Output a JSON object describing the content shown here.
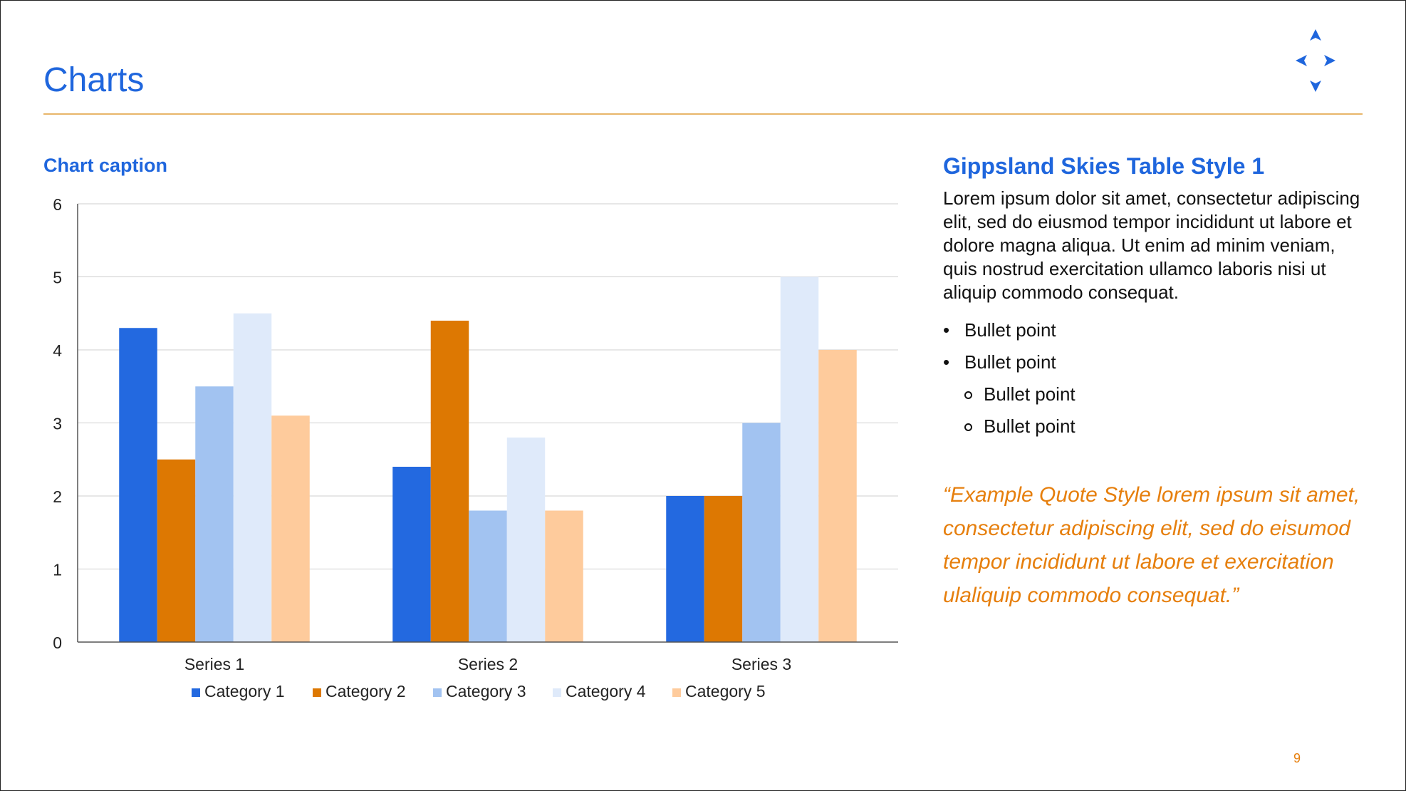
{
  "slide": {
    "title": "Charts",
    "caption": "Chart caption",
    "page_number": "9",
    "logo_icon": "four-arrow-star-icon",
    "accent_color": "#1f66dd",
    "rule_color": "#e8b66a"
  },
  "right_column": {
    "heading": "Gippsland Skies Table Style 1",
    "paragraph": "Lorem ipsum dolor sit amet, consectetur adipiscing elit, sed do eiusmod tempor incididunt ut labore et dolore magna aliqua. Ut enim ad minim veniam, quis nostrud exercitation ullamco laboris nisi ut aliquip commodo consequat.",
    "bullets": [
      {
        "level": 1,
        "text": "Bullet point"
      },
      {
        "level": 1,
        "text": "Bullet point"
      },
      {
        "level": 2,
        "text": "Bullet point"
      },
      {
        "level": 2,
        "text": "Bullet point"
      }
    ],
    "quote": "“Example Quote Style lorem ipsum sit amet, consectetur adipiscing elit, sed do eisumod tempor incididunt ut labore et exercitation ulaliquip commodo consequat.”",
    "quote_color": "#e67f0d"
  },
  "chart_data": {
    "type": "bar",
    "title": "Chart caption",
    "xlabel": "",
    "ylabel": "",
    "ylim": [
      0,
      6
    ],
    "yticks": [
      0,
      1,
      2,
      3,
      4,
      5,
      6
    ],
    "categories": [
      "Series 1",
      "Series 2",
      "Series 3"
    ],
    "grid": true,
    "legend_position": "bottom",
    "series": [
      {
        "name": "Category 1",
        "color": "#2369e0",
        "values": [
          4.3,
          2.4,
          2.0
        ]
      },
      {
        "name": "Category 2",
        "color": "#dd7802",
        "values": [
          2.5,
          4.4,
          2.0
        ]
      },
      {
        "name": "Category 3",
        "color": "#a2c3f1",
        "values": [
          3.5,
          1.8,
          3.0
        ]
      },
      {
        "name": "Category 4",
        "color": "#dfeafa",
        "values": [
          4.5,
          2.8,
          5.0
        ]
      },
      {
        "name": "Category 5",
        "color": "#fecb9c",
        "values": [
          3.1,
          1.8,
          4.0
        ]
      }
    ]
  }
}
